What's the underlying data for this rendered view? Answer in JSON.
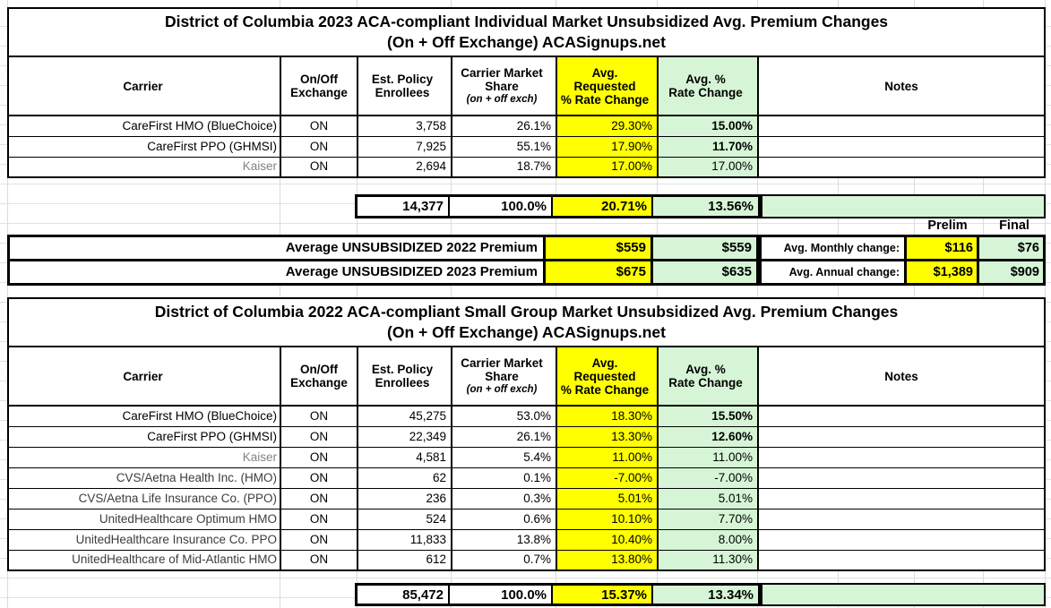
{
  "colors": {
    "highlight_yellow": "#ffff00",
    "highlight_green": "#d6f5d6",
    "gridline_gray": "#dcdfdc",
    "muted_carrier_gray": "#828282"
  },
  "header_cells": [
    {
      "key": "carrier",
      "lines": [
        "Carrier"
      ]
    },
    {
      "key": "exchange",
      "lines": [
        "On/Off",
        "Exchange"
      ]
    },
    {
      "key": "enrollees",
      "lines": [
        "Est. Policy",
        "Enrollees"
      ]
    },
    {
      "key": "share",
      "lines": [
        "Carrier Market",
        "Share"
      ],
      "note": "(on + off exch)"
    },
    {
      "key": "requested",
      "lines": [
        "Avg.",
        "Requested",
        "% Rate Change"
      ],
      "bg": "yellow"
    },
    {
      "key": "approved",
      "lines": [
        "Avg. %",
        "Rate Change"
      ],
      "bg": "green"
    },
    {
      "key": "notes",
      "lines": [
        "Notes"
      ]
    }
  ],
  "tables": [
    {
      "title_line1": "District of Columbia 2023 ACA-compliant Individual Market Unsubsidized Avg. Premium Changes",
      "title_line2": "(On + Off Exchange) ACASignups.net",
      "rows": [
        {
          "carrier": "CareFirst HMO (BlueChoice)",
          "exchange": "ON",
          "enrollees": "3,758",
          "share": "26.1%",
          "requested": "29.30%",
          "approved": "15.00%",
          "approved_bold": true,
          "carrier_color": "black"
        },
        {
          "carrier": "CareFirst PPO (GHMSI)",
          "exchange": "ON",
          "enrollees": "7,925",
          "share": "55.1%",
          "requested": "17.90%",
          "approved": "11.70%",
          "approved_bold": true,
          "carrier_color": "black"
        },
        {
          "carrier": "Kaiser",
          "exchange": "ON",
          "enrollees": "2,694",
          "share": "18.7%",
          "requested": "17.00%",
          "approved": "17.00%",
          "approved_bold": false,
          "carrier_color": "gray"
        }
      ],
      "total": {
        "enrollees": "14,377",
        "share": "100.0%",
        "requested": "20.71%",
        "approved": "13.56%"
      }
    },
    {
      "title_line1": "District of Columbia 2022 ACA-compliant Small Group Market Unsubsidized Avg. Premium Changes",
      "title_line2": "(On + Off Exchange) ACASignups.net",
      "rows": [
        {
          "carrier": "CareFirst HMO (BlueChoice)",
          "exchange": "ON",
          "enrollees": "45,275",
          "share": "53.0%",
          "requested": "18.30%",
          "approved": "15.50%",
          "approved_bold": true,
          "carrier_color": "black"
        },
        {
          "carrier": "CareFirst PPO (GHMSI)",
          "exchange": "ON",
          "enrollees": "22,349",
          "share": "26.1%",
          "requested": "13.30%",
          "approved": "12.60%",
          "approved_bold": true,
          "carrier_color": "black"
        },
        {
          "carrier": "Kaiser",
          "exchange": "ON",
          "enrollees": "4,581",
          "share": "5.4%",
          "requested": "11.00%",
          "approved": "11.00%",
          "approved_bold": false,
          "carrier_color": "gray"
        },
        {
          "carrier": "CVS/Aetna Health Inc. (HMO)",
          "exchange": "ON",
          "enrollees": "62",
          "share": "0.1%",
          "requested": "-7.00%",
          "approved": "-7.00%",
          "approved_bold": false,
          "carrier_color": "dark"
        },
        {
          "carrier": "CVS/Aetna Life Insurance Co. (PPO)",
          "exchange": "ON",
          "enrollees": "236",
          "share": "0.3%",
          "requested": "5.01%",
          "approved": "5.01%",
          "approved_bold": false,
          "carrier_color": "dark"
        },
        {
          "carrier": "UnitedHealthcare Optimum HMO",
          "exchange": "ON",
          "enrollees": "524",
          "share": "0.6%",
          "requested": "10.10%",
          "approved": "7.70%",
          "approved_bold": false,
          "carrier_color": "dark"
        },
        {
          "carrier": "UnitedHealthcare Insurance Co. PPO",
          "exchange": "ON",
          "enrollees": "11,833",
          "share": "13.8%",
          "requested": "10.40%",
          "approved": "8.00%",
          "approved_bold": false,
          "carrier_color": "dark"
        },
        {
          "carrier": "UnitedHealthcare of Mid-Atlantic HMO",
          "exchange": "ON",
          "enrollees": "612",
          "share": "0.7%",
          "requested": "13.80%",
          "approved": "11.30%",
          "approved_bold": false,
          "carrier_color": "dark"
        }
      ],
      "total": {
        "enrollees": "85,472",
        "share": "100.0%",
        "requested": "15.37%",
        "approved": "13.34%"
      }
    }
  ],
  "summary": {
    "prelim_label": "Prelim",
    "final_label": "Final",
    "rows": [
      {
        "label": "Average UNSUBSIDIZED 2022 Premium",
        "requested": "$559",
        "approved": "$559",
        "change_label": "Avg. Monthly change:",
        "prelim": "$116",
        "final": "$76"
      },
      {
        "label": "Average UNSUBSIDIZED 2023 Premium",
        "requested": "$675",
        "approved": "$635",
        "change_label": "Avg. Annual change:",
        "prelim": "$1,389",
        "final": "$909"
      }
    ]
  }
}
